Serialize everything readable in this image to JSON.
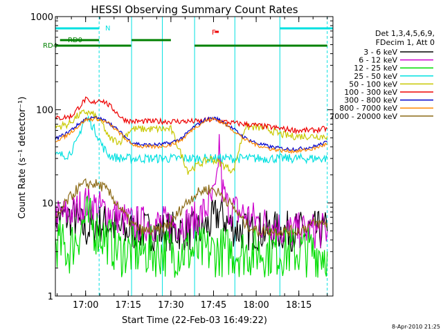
{
  "chart_data": {
    "type": "line",
    "title": "HESSI Observing Summary Count Rates",
    "xlabel": "Start Time (22-Feb-03 16:49:22)",
    "ylabel": "Count Rate (s⁻¹ detector⁻¹)",
    "y_scale": "log",
    "ylim": [
      1,
      1000
    ],
    "xlim": [
      "16:49:22",
      "18:27:00"
    ],
    "x_ticks": [
      "17:00",
      "17:15",
      "17:30",
      "17:45",
      "18:00",
      "18:15"
    ],
    "y_ticks": [
      "1",
      "10",
      "100",
      "1000"
    ],
    "footer": "8-Apr-2010 21:25",
    "legend": {
      "header": [
        "Det 1,3,4,5,6,9,",
        "FDecim 1, Att 0"
      ],
      "placement": "right"
    },
    "series": [
      {
        "name": "3 - 6 keV",
        "color": "#000000",
        "x": [
          "16:49",
          "16:56",
          "17:00",
          "17:04",
          "17:08",
          "17:12",
          "17:16",
          "17:20",
          "17:24",
          "17:28",
          "17:32",
          "17:36",
          "17:40",
          "17:44",
          "17:47",
          "17:50",
          "17:54",
          "17:58",
          "18:02",
          "18:06",
          "18:10",
          "18:15",
          "18:20",
          "18:25"
        ],
        "y": [
          7,
          7,
          5,
          6,
          6,
          5,
          5,
          5,
          5,
          5,
          5,
          5,
          5,
          6,
          8,
          6,
          5,
          5,
          5,
          5,
          5,
          5,
          5,
          5
        ]
      },
      {
        "name": "6 - 12 keV",
        "color": "#cc00cc",
        "x": [
          "16:49",
          "16:56",
          "16:58",
          "17:00",
          "17:04",
          "17:08",
          "17:12",
          "17:16",
          "17:20",
          "17:24",
          "17:28",
          "17:32",
          "17:36",
          "17:40",
          "17:44",
          "17:46",
          "17:47",
          "17:48",
          "17:50",
          "17:54",
          "17:58",
          "18:02",
          "18:06",
          "18:10",
          "18:15",
          "18:20",
          "18:25"
        ],
        "y": [
          7,
          8,
          9,
          10,
          9,
          8,
          7,
          6,
          6,
          6,
          6,
          6,
          6,
          7,
          10,
          13,
          45,
          14,
          9,
          8,
          7,
          6,
          6,
          5,
          5,
          5,
          5
        ]
      },
      {
        "name": "12 - 25 keV",
        "color": "#00dd00",
        "x": [
          "16:49",
          "16:54",
          "16:58",
          "17:00",
          "17:04",
          "17:08",
          "17:12",
          "17:16",
          "17:20",
          "17:24",
          "17:28",
          "17:32",
          "17:36",
          "17:40",
          "17:44",
          "17:47",
          "17:50",
          "17:54",
          "17:58",
          "18:02",
          "18:06",
          "18:10",
          "18:15",
          "18:20",
          "18:25"
        ],
        "y": [
          4,
          3,
          5,
          7,
          5,
          4,
          3,
          3,
          3,
          3,
          3,
          3,
          3,
          3,
          3,
          3,
          3,
          3,
          3,
          3,
          3,
          3,
          3,
          3,
          3
        ]
      },
      {
        "name": "25 - 50 keV",
        "color": "#00e0e0",
        "x": [
          "16:49",
          "16:54",
          "16:57",
          "16:59",
          "17:01",
          "17:04",
          "17:06",
          "17:08",
          "17:10",
          "17:13",
          "17:15",
          "17:20",
          "17:25",
          "17:30",
          "17:35",
          "17:40",
          "17:45",
          "17:50",
          "17:55",
          "18:00",
          "18:05",
          "18:10",
          "18:15",
          "18:20",
          "18:25"
        ],
        "y": [
          32,
          33,
          45,
          72,
          80,
          55,
          40,
          33,
          31,
          30,
          30,
          30,
          30,
          30,
          30,
          30,
          30,
          30,
          30,
          30,
          30,
          30,
          30,
          30,
          30
        ]
      },
      {
        "name": "50 - 100 keV",
        "color": "#c8c800",
        "x": [
          "16:49",
          "16:54",
          "16:57",
          "17:00",
          "17:03",
          "17:06",
          "17:08",
          "17:12",
          "17:16",
          "17:20",
          "17:25",
          "17:30",
          "17:36",
          "17:40",
          "17:44",
          "17:48",
          "17:52",
          "17:56",
          "18:00",
          "18:04",
          "18:08",
          "18:12",
          "18:16",
          "18:20",
          "18:25"
        ],
        "y": [
          65,
          70,
          85,
          95,
          88,
          70,
          50,
          45,
          62,
          62,
          62,
          62,
          22,
          26,
          30,
          26,
          22,
          65,
          65,
          62,
          55,
          52,
          52,
          52,
          52
        ]
      },
      {
        "name": "100 - 300 keV",
        "color": "#ee0000",
        "x": [
          "16:49",
          "16:55",
          "16:58",
          "17:00",
          "17:02",
          "17:05",
          "17:07",
          "17:10",
          "17:13",
          "17:16",
          "17:20",
          "17:25",
          "17:30",
          "17:36",
          "17:40",
          "17:44",
          "17:48",
          "17:52",
          "17:56",
          "18:00",
          "18:05",
          "18:10",
          "18:15",
          "18:20",
          "18:25"
        ],
        "y": [
          80,
          85,
          110,
          130,
          115,
          130,
          120,
          100,
          80,
          75,
          75,
          75,
          75,
          75,
          75,
          78,
          75,
          72,
          70,
          68,
          65,
          62,
          60,
          60,
          63
        ]
      },
      {
        "name": "300 - 800 keV",
        "color": "#0000cc",
        "x": [
          "16:49",
          "16:53",
          "16:57",
          "17:00",
          "17:04",
          "17:08",
          "17:12",
          "17:16",
          "17:20",
          "17:25",
          "17:30",
          "17:34",
          "17:38",
          "17:42",
          "17:45",
          "17:48",
          "17:52",
          "17:56",
          "18:00",
          "18:05",
          "18:10",
          "18:15",
          "18:20",
          "18:25"
        ],
        "y": [
          48,
          55,
          68,
          80,
          82,
          74,
          58,
          45,
          42,
          42,
          44,
          50,
          65,
          78,
          82,
          76,
          62,
          50,
          44,
          40,
          38,
          38,
          40,
          45
        ]
      },
      {
        "name": "800 - 7000 keV",
        "color": "#ff8800",
        "x": [
          "16:49",
          "16:53",
          "16:57",
          "17:00",
          "17:04",
          "17:08",
          "17:12",
          "17:16",
          "17:20",
          "17:25",
          "17:30",
          "17:34",
          "17:38",
          "17:42",
          "17:45",
          "17:48",
          "17:52",
          "17:56",
          "18:00",
          "18:05",
          "18:10",
          "18:15",
          "18:20",
          "18:25"
        ],
        "y": [
          46,
          52,
          65,
          78,
          80,
          72,
          56,
          43,
          40,
          40,
          42,
          48,
          63,
          76,
          80,
          74,
          60,
          48,
          42,
          38,
          36,
          36,
          38,
          43
        ]
      },
      {
        "name": "7000 - 20000 keV",
        "color": "#8b6914",
        "x": [
          "16:49",
          "16:53",
          "16:57",
          "17:00",
          "17:03",
          "17:06",
          "17:09",
          "17:12",
          "17:16",
          "17:20",
          "17:25",
          "17:30",
          "17:34",
          "17:38",
          "17:42",
          "17:45",
          "17:48",
          "17:52",
          "17:56",
          "18:00",
          "18:05",
          "18:10",
          "18:15",
          "18:20",
          "18:25"
        ],
        "y": [
          6,
          10,
          14,
          16,
          16,
          15,
          12,
          9,
          6,
          5,
          5,
          6,
          9,
          12,
          14,
          14,
          12,
          9,
          6,
          5,
          5,
          5,
          5,
          6,
          6
        ]
      }
    ],
    "vertical_lines": {
      "solid_times": [
        "16:49:22",
        "17:16:10",
        "17:27:00",
        "17:38:20",
        "17:52:30",
        "18:08:20"
      ],
      "dashed_times": [
        "17:04:45",
        "18:25:00"
      ],
      "color": "#00e0e0"
    },
    "annotations": {
      "N": {
        "label": "N",
        "color": "#00e0e0",
        "intervals": [
          [
            "16:49:22",
            "17:04:45"
          ],
          [
            "18:08:20",
            "18:27:00"
          ]
        ]
      },
      "RD0": {
        "label": "RD0",
        "color": "#008000",
        "intervals": [
          [
            "16:51:00",
            "17:04:45"
          ],
          [
            "17:16:10",
            "17:30:00"
          ]
        ]
      },
      "RD4": {
        "label": "RD4",
        "color": "#008000",
        "intervals": [
          [
            "16:49:22",
            "17:16:00"
          ],
          [
            "17:38:20",
            "17:52:30"
          ],
          [
            "17:52:30",
            "18:25:00"
          ]
        ]
      },
      "F": {
        "label": "F",
        "color": "#ee0000",
        "intervals": [
          [
            "17:45:30",
            "17:46:50"
          ]
        ]
      }
    }
  }
}
